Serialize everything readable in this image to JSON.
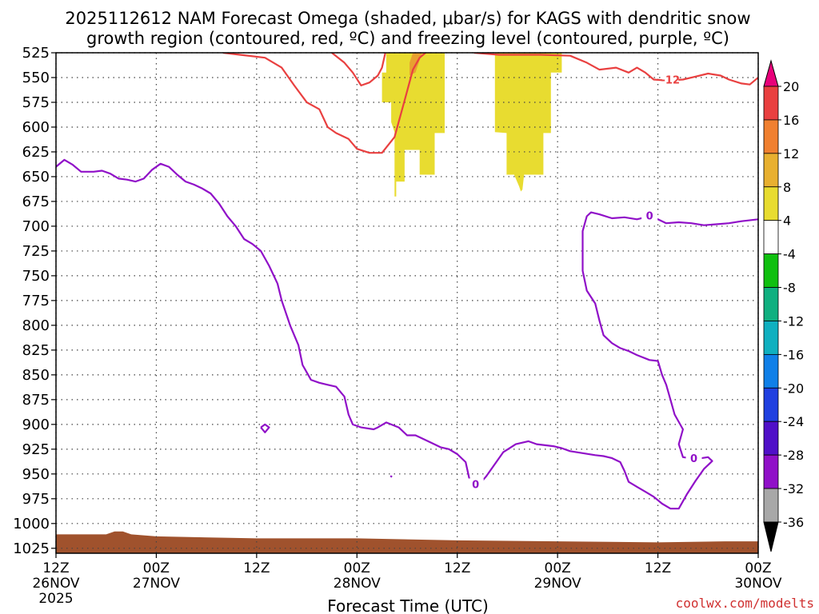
{
  "chart_data": {
    "type": "time-height",
    "title_line1": "2025112612 NAM Forecast Omega (shaded, μbar/s) for KAGS with dendritic snow",
    "title_line2": "growth region (contoured, red, ºC) and freezing level (contoured, purple, ºC)",
    "xlabel": "Forecast Time (UTC)",
    "credit": "coolwx.com/modelts",
    "x_hours_range": [
      0,
      84
    ],
    "y_pressure_range": [
      525,
      1030
    ],
    "y_ticks": [
      "525",
      "550",
      "575",
      "600",
      "625",
      "650",
      "675",
      "700",
      "725",
      "750",
      "775",
      "800",
      "825",
      "850",
      "875",
      "900",
      "925",
      "950",
      "975",
      "1000",
      "1025"
    ],
    "x_ticks": [
      {
        "h": 0,
        "line1": "12Z",
        "line2": "26NOV",
        "line3": "2025"
      },
      {
        "h": 12,
        "line1": "00Z",
        "line2": "27NOV",
        "line3": ""
      },
      {
        "h": 24,
        "line1": "12Z",
        "line2": "",
        "line3": ""
      },
      {
        "h": 36,
        "line1": "00Z",
        "line2": "28NOV",
        "line3": ""
      },
      {
        "h": 48,
        "line1": "12Z",
        "line2": "",
        "line3": ""
      },
      {
        "h": 60,
        "line1": "00Z",
        "line2": "29NOV",
        "line3": ""
      },
      {
        "h": 72,
        "line1": "12Z",
        "line2": "",
        "line3": ""
      },
      {
        "h": 84,
        "line1": "00Z",
        "line2": "30NOV",
        "line3": ""
      }
    ],
    "colorbar": {
      "labels": [
        "20",
        "16",
        "12",
        "8",
        "4",
        "-4",
        "-8",
        "-12",
        "-16",
        "-20",
        "-24",
        "-28",
        "-32",
        "-36"
      ],
      "colors": [
        "#e8007a",
        "#e94040",
        "#f08030",
        "#e8b030",
        "#e8dc30",
        "#ffffff",
        "#10c010",
        "#10b080",
        "#10b0c0",
        "#1080e8",
        "#2040e0",
        "#5010c8",
        "#9010c8",
        "#a8a8a8",
        "#000000"
      ]
    },
    "omega_positive_regions": [
      {
        "name": "yellow-area-left",
        "value": 4,
        "points": [
          [
            39.5,
            525
          ],
          [
            46.5,
            525
          ],
          [
            46.5,
            606
          ],
          [
            45.3,
            606
          ],
          [
            45.3,
            648
          ],
          [
            43.5,
            648
          ],
          [
            43.5,
            623
          ],
          [
            41.7,
            623
          ],
          [
            41.7,
            655
          ],
          [
            40.7,
            655
          ],
          [
            40.7,
            670
          ],
          [
            40.5,
            670
          ],
          [
            40.5,
            605
          ],
          [
            40.1,
            595
          ],
          [
            40.1,
            575
          ],
          [
            39.0,
            575
          ],
          [
            39.0,
            545
          ],
          [
            39.5,
            545
          ]
        ]
      },
      {
        "name": "yellow-area-right",
        "value": 4,
        "points": [
          [
            52.5,
            525
          ],
          [
            60.5,
            525
          ],
          [
            60.5,
            545
          ],
          [
            59.2,
            545
          ],
          [
            59.2,
            606
          ],
          [
            58.3,
            606
          ],
          [
            58.3,
            648
          ],
          [
            56.0,
            648
          ],
          [
            55.8,
            663
          ],
          [
            55.6,
            665
          ],
          [
            55.4,
            660
          ],
          [
            54.8,
            648
          ],
          [
            53.9,
            648
          ],
          [
            53.9,
            606
          ],
          [
            52.5,
            605
          ]
        ]
      },
      {
        "name": "orange-area",
        "value": 8,
        "points": [
          [
            42.7,
            525
          ],
          [
            43.8,
            525
          ],
          [
            43.0,
            545
          ],
          [
            42.3,
            548
          ],
          [
            42.3,
            535
          ]
        ]
      }
    ],
    "red_dgz_contours": [
      {
        "name": "red-contour-left",
        "label": "-12",
        "points": [
          [
            20.0,
            525
          ],
          [
            22.0,
            527
          ],
          [
            25.0,
            530
          ],
          [
            27.0,
            540
          ],
          [
            28.5,
            558
          ],
          [
            30.0,
            575
          ],
          [
            31.5,
            582
          ],
          [
            32.5,
            600
          ],
          [
            33.5,
            606
          ],
          [
            35.0,
            612
          ],
          [
            36.0,
            622
          ],
          [
            37.5,
            626
          ],
          [
            39.0,
            626
          ],
          [
            40.5,
            610
          ],
          [
            41.7,
            573
          ],
          [
            42.7,
            542
          ],
          [
            43.5,
            530
          ],
          [
            44.2,
            525
          ]
        ]
      },
      {
        "name": "red-contour-mid",
        "label": "-12",
        "points": [
          [
            33.0,
            525
          ],
          [
            34.5,
            535
          ],
          [
            35.5,
            545
          ],
          [
            36.5,
            558
          ],
          [
            37.5,
            555
          ],
          [
            38.5,
            548
          ],
          [
            39.0,
            540
          ],
          [
            39.4,
            525
          ]
        ]
      },
      {
        "name": "red-contour-right",
        "label": "-12",
        "points": [
          [
            50.0,
            525
          ],
          [
            53.0,
            527
          ],
          [
            58.0,
            527
          ],
          [
            61.5,
            528
          ],
          [
            63.5,
            535
          ],
          [
            65.0,
            542
          ],
          [
            67.0,
            540
          ],
          [
            68.5,
            545
          ],
          [
            69.5,
            540
          ],
          [
            70.5,
            545
          ],
          [
            71.5,
            552
          ],
          [
            73.0,
            553
          ],
          [
            75.0,
            552
          ],
          [
            76.5,
            549
          ],
          [
            78.0,
            546
          ],
          [
            79.5,
            548
          ],
          [
            80.5,
            552
          ],
          [
            82.0,
            556
          ],
          [
            83.0,
            557
          ],
          [
            84,
            550
          ]
        ]
      }
    ],
    "purple_freezing_contours": [
      {
        "name": "purple-contour-main",
        "label": "0",
        "points": [
          [
            0,
            640
          ],
          [
            1.0,
            633
          ],
          [
            2.0,
            638
          ],
          [
            3.0,
            645
          ],
          [
            4.5,
            645
          ],
          [
            5.5,
            644
          ],
          [
            6.5,
            647
          ],
          [
            7.5,
            652
          ],
          [
            8.5,
            653
          ],
          [
            9.5,
            655
          ],
          [
            10.5,
            652
          ],
          [
            11.5,
            643
          ],
          [
            12.5,
            637
          ],
          [
            13.5,
            640
          ],
          [
            14.5,
            648
          ],
          [
            15.5,
            655
          ],
          [
            16.5,
            658
          ],
          [
            17.5,
            662
          ],
          [
            18.5,
            667
          ],
          [
            19.5,
            677
          ],
          [
            20.5,
            690
          ],
          [
            21.5,
            700
          ],
          [
            22.5,
            713
          ],
          [
            23.5,
            718
          ],
          [
            24.5,
            725
          ],
          [
            25.5,
            740
          ],
          [
            26.5,
            758
          ],
          [
            27.0,
            775
          ],
          [
            28.0,
            800
          ],
          [
            29.0,
            820
          ],
          [
            29.5,
            840
          ],
          [
            30.5,
            855
          ],
          [
            31.5,
            858
          ],
          [
            32.5,
            860
          ],
          [
            33.5,
            862
          ],
          [
            34.5,
            872
          ],
          [
            35.0,
            890
          ],
          [
            35.5,
            900
          ],
          [
            36.5,
            903
          ],
          [
            38.0,
            905
          ],
          [
            38.5,
            903
          ],
          [
            39.5,
            898
          ],
          [
            41.0,
            903
          ],
          [
            42.0,
            911
          ],
          [
            43.0,
            911
          ],
          [
            44.0,
            915
          ],
          [
            45.0,
            919
          ],
          [
            46.0,
            923
          ],
          [
            47.0,
            925
          ],
          [
            48.0,
            930
          ],
          [
            49.0,
            938
          ],
          [
            49.5,
            957
          ],
          [
            50.5,
            962
          ],
          [
            51.5,
            952
          ],
          [
            52.5,
            940
          ],
          [
            53.5,
            928
          ],
          [
            55.0,
            920
          ],
          [
            56.5,
            917
          ],
          [
            57.5,
            920
          ],
          [
            58.5,
            921
          ],
          [
            59.5,
            922
          ],
          [
            60.5,
            924
          ],
          [
            61.5,
            927
          ],
          [
            63.0,
            929
          ],
          [
            64.5,
            931
          ],
          [
            65.5,
            932
          ],
          [
            66.5,
            934
          ],
          [
            67.5,
            938
          ],
          [
            68.0,
            947
          ],
          [
            68.5,
            958
          ],
          [
            69.5,
            963
          ],
          [
            70.5,
            968
          ],
          [
            71.5,
            973
          ],
          [
            72.5,
            980
          ],
          [
            73.5,
            985
          ],
          [
            74.5,
            985
          ],
          [
            75.5,
            970
          ],
          [
            76.5,
            957
          ],
          [
            77.5,
            945
          ],
          [
            78.5,
            937
          ],
          [
            78.0,
            933
          ],
          [
            76.5,
            935
          ],
          [
            75.0,
            933
          ],
          [
            74.5,
            920
          ],
          [
            75.0,
            905
          ],
          [
            74.0,
            890
          ],
          [
            73.5,
            875
          ],
          [
            73.0,
            860
          ],
          [
            72.5,
            850
          ],
          [
            72.0,
            836
          ],
          [
            71.0,
            835
          ],
          [
            69.5,
            830
          ],
          [
            68.5,
            826
          ],
          [
            67.5,
            823
          ],
          [
            66.5,
            818
          ],
          [
            65.5,
            810
          ],
          [
            65.0,
            795
          ],
          [
            64.5,
            778
          ],
          [
            63.5,
            765
          ],
          [
            63.0,
            745
          ],
          [
            63.0,
            720
          ],
          [
            63.0,
            705
          ],
          [
            63.5,
            690
          ],
          [
            64.0,
            686
          ],
          [
            65.0,
            688
          ],
          [
            66.5,
            692
          ],
          [
            68.0,
            691
          ],
          [
            69.5,
            693
          ],
          [
            71.0,
            690
          ],
          [
            72.0,
            693
          ],
          [
            73.0,
            697
          ],
          [
            74.5,
            696
          ],
          [
            76.0,
            697
          ],
          [
            77.5,
            699
          ],
          [
            79.0,
            698
          ],
          [
            80.5,
            697
          ],
          [
            82.0,
            695
          ],
          [
            84.0,
            693
          ]
        ]
      },
      {
        "name": "purple-small-loop-1",
        "label": "",
        "points": [
          [
            24.5,
            903
          ],
          [
            25.0,
            908
          ],
          [
            25.5,
            903
          ],
          [
            25.0,
            900
          ],
          [
            24.5,
            903
          ]
        ]
      },
      {
        "name": "purple-small-mark-2",
        "label": "",
        "points": [
          [
            40.0,
            952
          ],
          [
            40.2,
            953
          ]
        ]
      }
    ],
    "contour_labels": [
      {
        "text": "-12",
        "h": 73.5,
        "p": 553,
        "color": "#e94040"
      },
      {
        "text": "0",
        "h": 50.2,
        "p": 961,
        "color": "#9010c8"
      },
      {
        "text": "0",
        "h": 71.0,
        "p": 690,
        "color": "#9010c8"
      },
      {
        "text": "0",
        "h": 76.3,
        "p": 935,
        "color": "#9010c8"
      }
    ],
    "ground": {
      "color": "#a0522d",
      "surface_pressure": [
        [
          0,
          1011
        ],
        [
          6,
          1011
        ],
        [
          7,
          1008
        ],
        [
          8,
          1008
        ],
        [
          9,
          1011
        ],
        [
          12,
          1013
        ],
        [
          24,
          1015
        ],
        [
          36,
          1015
        ],
        [
          48,
          1017
        ],
        [
          60,
          1018
        ],
        [
          72,
          1019
        ],
        [
          80,
          1018
        ],
        [
          84,
          1018
        ]
      ]
    }
  }
}
